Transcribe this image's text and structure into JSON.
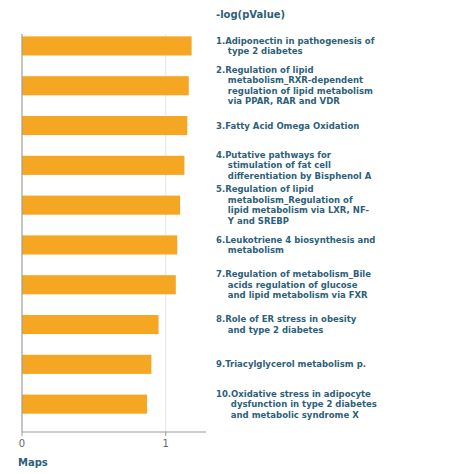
{
  "chart_data": {
    "type": "bar",
    "orientation": "horizontal",
    "title": "-log(pValue)",
    "xlabel": "Maps",
    "categories": [
      "1.​Adiponectin in pathogenesis of\n    type 2 diabetes",
      "2.​Regulation of lipid\n    metabolism_RXR-dependent\n    regulation of lipid metabolism\n    via PPAR, RAR and VDR",
      "3.​Fatty Acid Omega Oxidation",
      "4.​Putative pathways for\n    stimulation of fat cell\n    differentiation by Bisphenol A",
      "5.​Regulation of lipid\n    metabolism_Regulation of\n    lipid metabolism via LXR, NF-\n    Y and SREBP",
      "6.​Leukotriene 4 biosynthesis and\n    metabolism",
      "7.​Regulation of metabolism_Bile\n    acids regulation of glucose\n    and lipid metabolism via FXR",
      "8.​Role of ER stress in obesity\n    and type 2 diabetes",
      "9.​Triacylglycerol metabolism p.",
      "10.​Oxidative stress in adipocyte\n     dysfunction in type 2 diabetes\n     and metabolic syndrome X"
    ],
    "values": [
      1.18,
      1.16,
      1.15,
      1.13,
      1.1,
      1.08,
      1.07,
      0.95,
      0.9,
      0.87
    ],
    "color": "#F5A623",
    "xlim": [
      0,
      1.28
    ],
    "xticks": [
      0,
      1
    ],
    "grid": true
  }
}
